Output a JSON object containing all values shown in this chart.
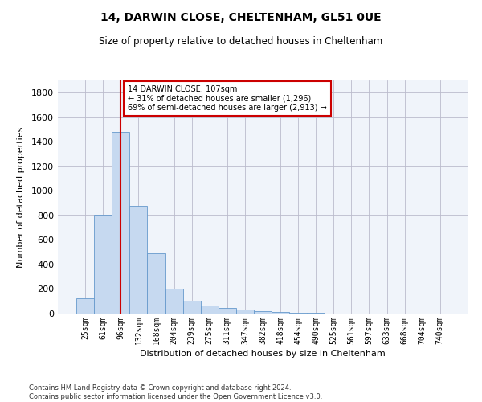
{
  "title1": "14, DARWIN CLOSE, CHELTENHAM, GL51 0UE",
  "title2": "Size of property relative to detached houses in Cheltenham",
  "xlabel": "Distribution of detached houses by size in Cheltenham",
  "ylabel": "Number of detached properties",
  "footer1": "Contains HM Land Registry data © Crown copyright and database right 2024.",
  "footer2": "Contains public sector information licensed under the Open Government Licence v3.0.",
  "bin_labels": [
    "25sqm",
    "61sqm",
    "96sqm",
    "132sqm",
    "168sqm",
    "204sqm",
    "239sqm",
    "275sqm",
    "311sqm",
    "347sqm",
    "382sqm",
    "418sqm",
    "454sqm",
    "490sqm",
    "525sqm",
    "561sqm",
    "597sqm",
    "633sqm",
    "668sqm",
    "704sqm",
    "740sqm"
  ],
  "bar_values": [
    125,
    800,
    1480,
    880,
    490,
    205,
    105,
    65,
    45,
    33,
    22,
    15,
    8,
    4,
    3,
    2,
    2,
    1,
    1,
    1,
    1
  ],
  "bar_color": "#c6d9f0",
  "bar_edge_color": "#6699cc",
  "vline_x_index": 2,
  "vline_color": "#cc0000",
  "annotation_title": "14 DARWIN CLOSE: 107sqm",
  "annotation_line1": "← 31% of detached houses are smaller (1,296)",
  "annotation_line2": "69% of semi-detached houses are larger (2,913) →",
  "annotation_box_color": "#cc0000",
  "ylim": [
    0,
    1900
  ],
  "yticks": [
    0,
    200,
    400,
    600,
    800,
    1000,
    1200,
    1400,
    1600,
    1800
  ],
  "figsize": [
    6.0,
    5.0
  ],
  "dpi": 100,
  "bg_color": "#f0f4fa"
}
